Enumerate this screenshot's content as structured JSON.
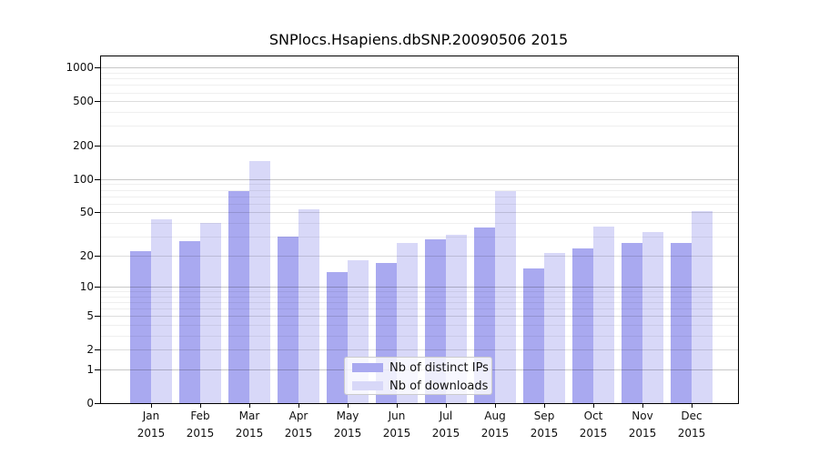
{
  "chart_data": {
    "type": "bar",
    "title": "SNPlocs.Hsapiens.dbSNP.20090506 2015",
    "categories": [
      "Jan 2015",
      "Feb 2015",
      "Mar 2015",
      "Apr 2015",
      "May 2015",
      "Jun 2015",
      "Jul 2015",
      "Aug 2015",
      "Sep 2015",
      "Oct 2015",
      "Nov 2015",
      "Dec 2015"
    ],
    "series": [
      {
        "name": "Nb of distinct IPs",
        "color": "#a9a9f0",
        "values": [
          22,
          27,
          78,
          30,
          14,
          17,
          28,
          36,
          15,
          23,
          26,
          26
        ]
      },
      {
        "name": "Nb of downloads",
        "color": "#d8d8f8",
        "values": [
          43,
          40,
          146,
          53,
          18,
          26,
          31,
          78,
          21,
          37,
          33,
          51
        ]
      }
    ],
    "yscale": "log1p",
    "ylim": [
      0,
      1260
    ],
    "y_ticks": [
      1000,
      500,
      200,
      100,
      50,
      20,
      10,
      5,
      2,
      1,
      0
    ],
    "y_major_gridlines": [
      1,
      10,
      100,
      1000
    ],
    "grid": true,
    "legend_position": "inside-bottom-center",
    "xlabel": "",
    "ylabel": ""
  },
  "colors": {
    "background": "#ffffff",
    "axis": "#000000",
    "grid_major": "#c8c8c8",
    "grid_mid": "#dddddd",
    "grid_minor": "#efefef",
    "text": "#111111"
  }
}
